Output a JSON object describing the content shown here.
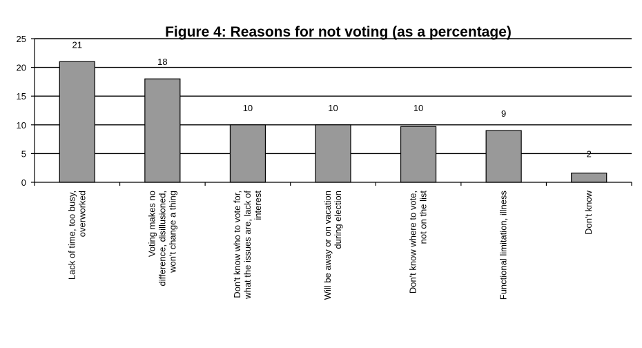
{
  "chart_data": {
    "type": "bar",
    "title": "Figure 4: Reasons for not voting (as a percentage)",
    "categories": [
      [
        "Lack of time, too busy,",
        "overworked"
      ],
      [
        "Voting makes no",
        "difference, disillusioned,",
        "won't change a thing"
      ],
      [
        "Don't know who to vote for,",
        "what the issues are, lack of",
        "interest"
      ],
      [
        "Will be away or on vacation",
        "during election"
      ],
      [
        "Don't know where to vote,",
        "not on the list"
      ],
      [
        "Functional limitation, illness"
      ],
      [
        "Don't know"
      ]
    ],
    "values": [
      21,
      18,
      10,
      10,
      10,
      9,
      2
    ],
    "data_labels": [
      "21",
      "18",
      "10",
      "10",
      "10",
      "9",
      "2"
    ],
    "bar_values": [
      21,
      18,
      10,
      10,
      9.7,
      9,
      1.6
    ],
    "ylim": [
      0,
      25
    ],
    "yticks": [
      0,
      5,
      10,
      15,
      20,
      25
    ],
    "grid": true,
    "xlabel": "",
    "ylabel": "",
    "colors": {
      "bar": "#999999",
      "grid": "#000000"
    }
  }
}
